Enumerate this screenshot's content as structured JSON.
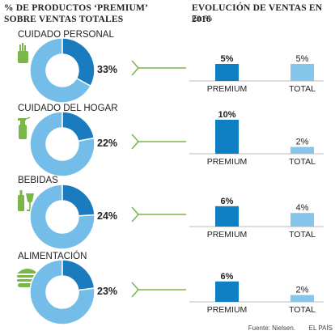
{
  "header": {
    "left_title_1": "% de productos ‘premium’",
    "left_title_2": "sobre ventas totales",
    "right_title": "Evolución de ventas en 2016",
    "right_subtitle": "En %"
  },
  "colors": {
    "premium": "#0f7fc4",
    "premium_share": "#1a7bbf",
    "rest": "#74bde8",
    "total": "#86c6ea",
    "connector": "#7ab648",
    "icon": "#7ab648"
  },
  "chart_data": {
    "type": "bar",
    "categories": [
      "CUIDADO PERSONAL",
      "CUIDADO DEL HOGAR",
      "BEBIDAS",
      "ALIMENTACIÓN"
    ],
    "icons": [
      "personal-care-icon",
      "spray-bottle-icon",
      "drinks-icon",
      "burger-icon"
    ],
    "premium_share_pct": [
      33,
      22,
      24,
      23
    ],
    "premium_share_labels": [
      "33%",
      "22%",
      "24%",
      "23%"
    ],
    "bar_labels": [
      "PREMIUM",
      "TOTAL"
    ],
    "sales_growth": {
      "premium": [
        5,
        10,
        6,
        6
      ],
      "total": [
        5,
        2,
        4,
        2
      ],
      "premium_labels": [
        "5%",
        "10%",
        "6%",
        "6%"
      ],
      "total_labels": [
        "5%",
        "2%",
        "4%",
        "2%"
      ]
    },
    "ylim": [
      0,
      10
    ]
  },
  "footer": {
    "source": "Fuente: Nielsen.",
    "brand": "EL PAÍS"
  }
}
